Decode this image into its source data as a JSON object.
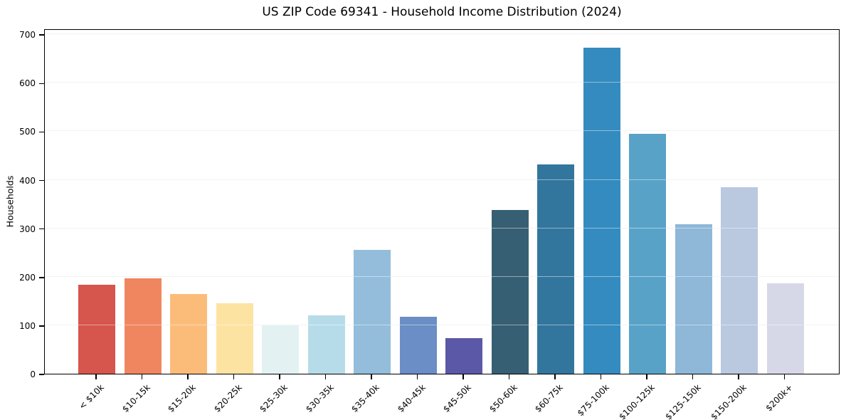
{
  "title": "US ZIP Code 69341 - Household Income Distribution (2024)",
  "chart_data": {
    "type": "bar",
    "title": "US ZIP Code 69341 - Household Income Distribution (2024)",
    "xlabel": "",
    "ylabel": "Households",
    "categories": [
      "< $10k",
      "$10-15k",
      "$15-20k",
      "$20-25k",
      "$25-30k",
      "$30-35k",
      "$35-40k",
      "$40-45k",
      "$45-50k",
      "$50-60k",
      "$60-75k",
      "$75-100k",
      "$100-125k",
      "$125-150k",
      "$150-200k",
      "$200k+"
    ],
    "values": [
      183,
      197,
      164,
      145,
      102,
      120,
      255,
      118,
      73,
      337,
      432,
      672,
      495,
      309,
      385,
      186
    ],
    "bar_colors": [
      "#d6554d",
      "#f0865f",
      "#fcbc79",
      "#fde3a2",
      "#e4f1f3",
      "#b7dce9",
      "#93bddb",
      "#6a8ec5",
      "#5b58a7",
      "#375f73",
      "#33769d",
      "#348bbf",
      "#58a2c8",
      "#8fb7d8",
      "#bac8e0",
      "#d7d8e7"
    ],
    "yticks": [
      0,
      100,
      200,
      300,
      400,
      500,
      600,
      700
    ],
    "ylim": [
      0,
      712
    ],
    "grid": "horizontal-only",
    "legend_position": "none",
    "x_tick_rotation": 45,
    "background_color": "#ffffff",
    "grid_color": "#e9e9e9",
    "spine_color": "#000000",
    "text_color": "#000000"
  }
}
